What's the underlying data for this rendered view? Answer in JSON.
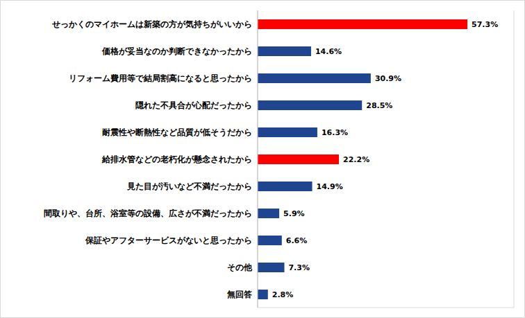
{
  "chart_data": {
    "type": "bar",
    "orientation": "horizontal",
    "categories": [
      "せっかくのマイホームは新築の方が気持ちがいいから",
      "価格が妥当なのか判断できなかったから",
      "リフォーム費用等で結局割高になると思ったから",
      "隠れた不具合が心配だったから",
      "耐震性や断熱性など品質が低そうだから",
      "給排水管などの老朽化が懸念されたから",
      "見た目が汚いなど不満だったから",
      "間取りや、台所、浴室等の設備、広さが不満だったから",
      "保証やアフターサービスがないと思ったから",
      "その他",
      "無回答"
    ],
    "values": [
      57.3,
      14.6,
      30.9,
      28.5,
      16.3,
      22.2,
      14.9,
      5.9,
      6.6,
      7.3,
      2.8
    ],
    "value_labels": [
      "57.3%",
      "14.6%",
      "30.9%",
      "28.5%",
      "16.3%",
      "22.2%",
      "14.9%",
      "5.9%",
      "6.6%",
      "7.3%",
      "2.8%"
    ],
    "colors": [
      "#ff0000",
      "#1f4591",
      "#1f4591",
      "#1f4591",
      "#1f4591",
      "#ff0000",
      "#1f4591",
      "#1f4591",
      "#1f4591",
      "#1f4591",
      "#1f4591"
    ],
    "xlim": [
      0,
      70
    ],
    "xticks": [
      0,
      10,
      20,
      30,
      40,
      50,
      60,
      70
    ],
    "grid": true,
    "data_labels": true,
    "tick_labels": "y"
  }
}
